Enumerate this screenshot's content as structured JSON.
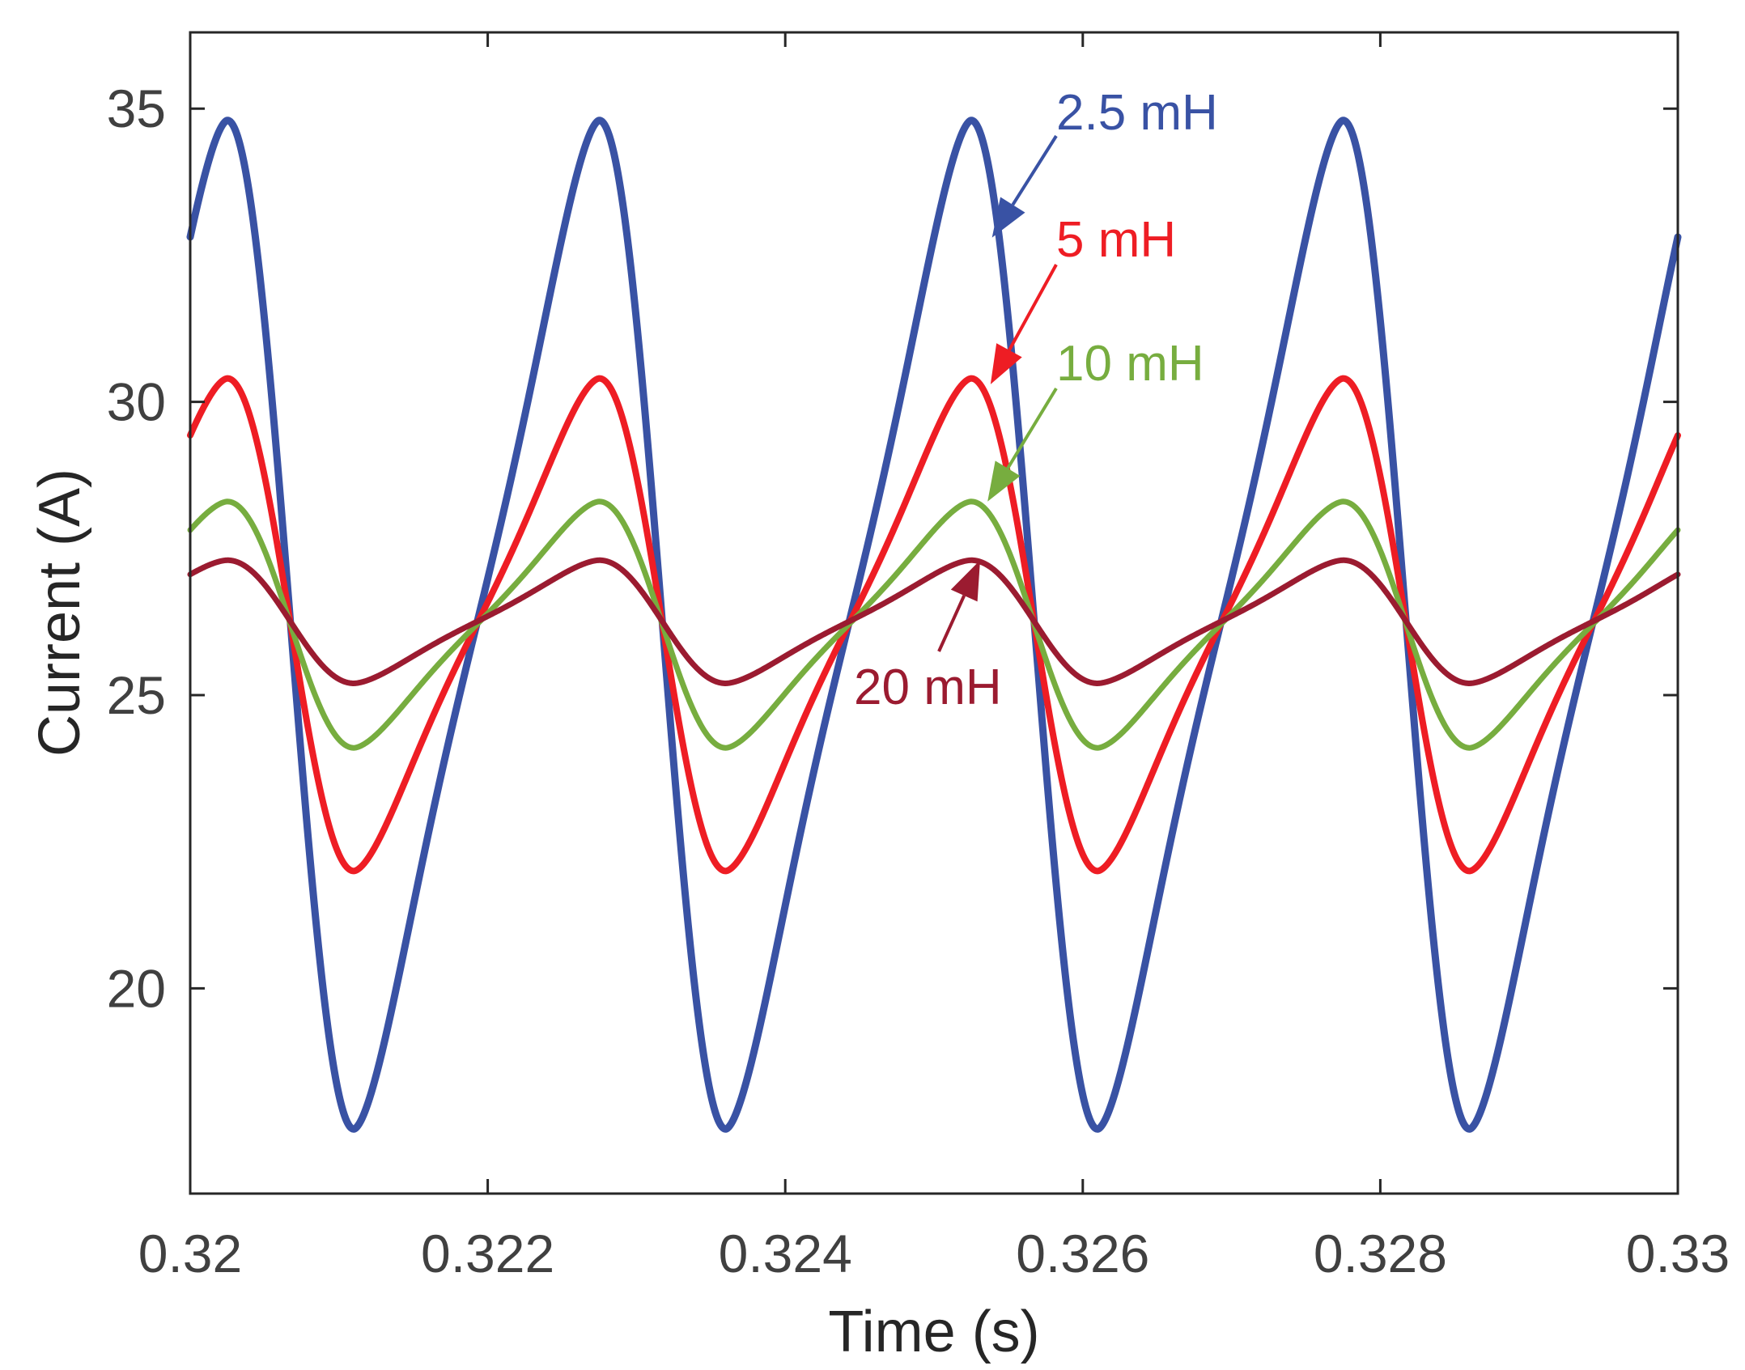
{
  "chart_data": {
    "type": "line",
    "title": "",
    "xlabel": "Time (s)",
    "ylabel": "Current (A)",
    "xlim": [
      0.32,
      0.33
    ],
    "ylim": [
      16.5,
      36.3
    ],
    "xticks": [
      0.32,
      0.322,
      0.324,
      0.326,
      0.328,
      0.33
    ],
    "xtick_labels": [
      "0.32",
      "0.322",
      "0.324",
      "0.326",
      "0.328",
      "0.33"
    ],
    "yticks": [
      20,
      25,
      30,
      35
    ],
    "ytick_labels": [
      "20",
      "25",
      "30",
      "35"
    ],
    "grid": false,
    "period_s": 0.0025,
    "series": [
      {
        "name": "2.5 mH",
        "color": "#3952a4",
        "mean": 26.2,
        "max": 34.8,
        "min": 17.6,
        "peak_time": 0.32025,
        "trough_time": 0.3211,
        "label_value": 33.0
      },
      {
        "name": "5 mH",
        "color": "#ee1d24",
        "mean": 26.2,
        "max": 30.4,
        "min": 22.0,
        "peak_time": 0.32025,
        "trough_time": 0.3211,
        "label_value": 30.5
      },
      {
        "name": "10 mH",
        "color": "#77ad3f",
        "mean": 26.2,
        "max": 28.3,
        "min": 24.1,
        "peak_time": 0.32025,
        "trough_time": 0.3211,
        "label_value": 28.3
      },
      {
        "name": "20 mH",
        "color": "#9b1b30",
        "mean": 26.2,
        "max": 27.3,
        "min": 25.2,
        "peak_time": 0.32025,
        "trough_time": 0.3211,
        "label_value": 27.3
      }
    ],
    "annotations": [
      {
        "text": "2.5 mH",
        "color": "#3952a4",
        "arrow_to": {
          "x": 0.32539,
          "y": 32.8
        }
      },
      {
        "text": "5 mH",
        "color": "#ee1d24",
        "arrow_to": {
          "x": 0.32538,
          "y": 30.3
        }
      },
      {
        "text": "10 mH",
        "color": "#77ad3f",
        "arrow_to": {
          "x": 0.32536,
          "y": 28.3
        }
      },
      {
        "text": "20 mH",
        "color": "#9b1b30",
        "arrow_to": {
          "x": 0.32531,
          "y": 27.3
        }
      }
    ]
  }
}
